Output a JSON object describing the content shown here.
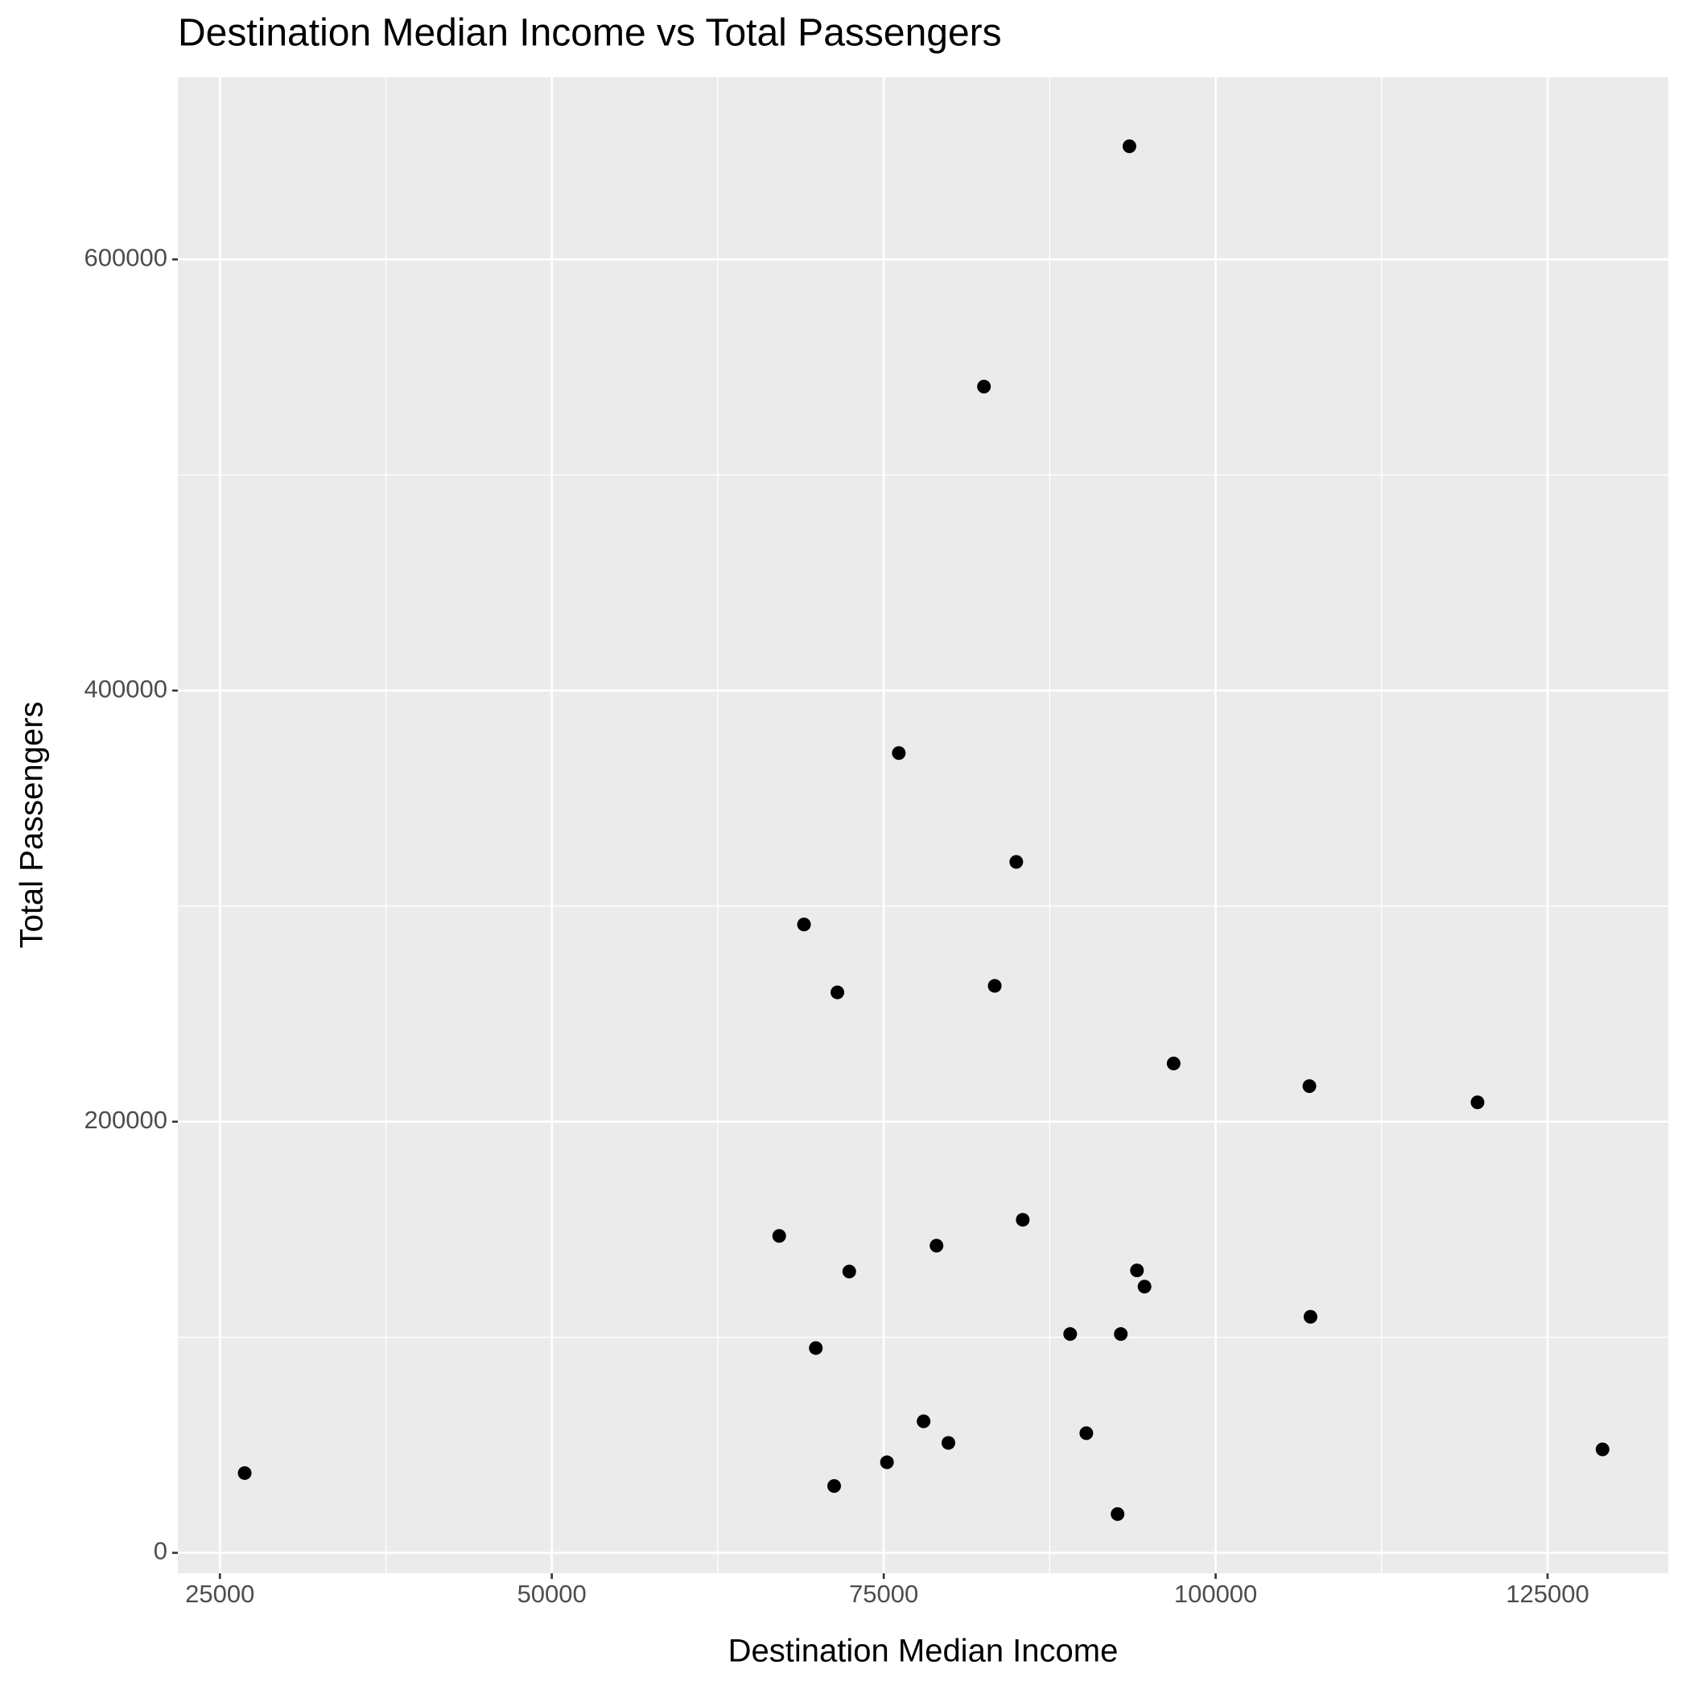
{
  "chart_data": {
    "type": "scatter",
    "title": "Destination Median Income vs Total Passengers",
    "x_label": "Destination Median Income",
    "y_label": "Total Passengers",
    "color": "#000000",
    "grid": true,
    "xlim": [
      21834,
      134091
    ],
    "ylim": [
      -9500,
      684500
    ],
    "xticks": [
      25000,
      50000,
      75000,
      100000,
      125000
    ],
    "yticks": [
      0,
      200000,
      400000,
      600000
    ],
    "x": [
      93506,
      82549,
      76136,
      84984,
      68994,
      83360,
      71510,
      96834,
      107062,
      119724,
      85471,
      67127,
      78977,
      72403,
      94075,
      94643,
      107143,
      89042,
      92857,
      69886,
      78003,
      90260,
      79870,
      129140,
      75244,
      26867,
      71266,
      92614
    ],
    "values": [
      652500,
      541000,
      371000,
      320500,
      291500,
      263000,
      260000,
      227000,
      216500,
      209000,
      154500,
      147000,
      142500,
      130500,
      131000,
      123500,
      109500,
      101500,
      101500,
      95000,
      61000,
      55500,
      51000,
      48000,
      42000,
      37000,
      31000,
      18000
    ]
  }
}
